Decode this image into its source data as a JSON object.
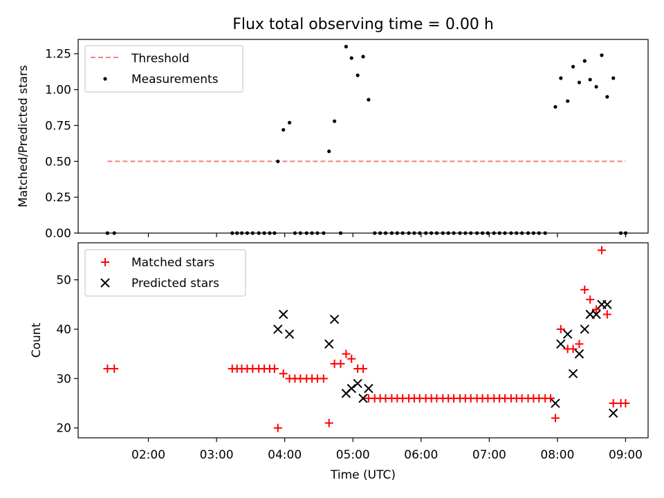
{
  "chart_data": {
    "title": "Flux total observing time = 0.00 h",
    "xlabel": "Time (UTC)",
    "x_ticks": [
      "02:00",
      "03:00",
      "04:00",
      "05:00",
      "06:00",
      "07:00",
      "08:00",
      "09:00"
    ],
    "x_range_hours": [
      0.97,
      9.33
    ],
    "panels": [
      {
        "type": "scatter",
        "ylabel": "Matched/Predicted stars",
        "ylim": [
          0,
          1.35
        ],
        "y_ticks": [
          "0.00",
          "0.25",
          "0.50",
          "0.75",
          "1.00",
          "1.25"
        ],
        "y_tick_values": [
          0,
          0.25,
          0.5,
          0.75,
          1.0,
          1.25
        ],
        "legend": {
          "position": "top-left",
          "entries": [
            "Threshold",
            "Measurements"
          ]
        },
        "threshold": {
          "name": "Threshold",
          "value": 0.5,
          "x_start": 1.4,
          "x_end": 9.0,
          "color": "#f08080"
        },
        "series": [
          {
            "name": "Measurements",
            "color": "#000000",
            "points": [
              [
                1.4,
                0
              ],
              [
                1.5,
                0
              ],
              [
                3.23,
                0
              ],
              [
                3.3,
                0
              ],
              [
                3.37,
                0
              ],
              [
                3.45,
                0
              ],
              [
                3.53,
                0
              ],
              [
                3.62,
                0
              ],
              [
                3.7,
                0
              ],
              [
                3.78,
                0
              ],
              [
                3.85,
                0
              ],
              [
                3.9,
                0.5
              ],
              [
                3.98,
                0.72
              ],
              [
                4.07,
                0.77
              ],
              [
                4.15,
                0
              ],
              [
                4.23,
                0
              ],
              [
                4.32,
                0
              ],
              [
                4.4,
                0
              ],
              [
                4.48,
                0
              ],
              [
                4.57,
                0
              ],
              [
                4.65,
                0.57
              ],
              [
                4.73,
                0.78
              ],
              [
                4.82,
                0
              ],
              [
                4.9,
                1.3
              ],
              [
                4.98,
                1.22
              ],
              [
                5.07,
                1.1
              ],
              [
                5.15,
                1.23
              ],
              [
                5.23,
                0.93
              ],
              [
                5.32,
                0
              ],
              [
                5.4,
                0
              ],
              [
                5.48,
                0
              ],
              [
                5.57,
                0
              ],
              [
                5.65,
                0
              ],
              [
                5.73,
                0
              ],
              [
                5.82,
                0
              ],
              [
                5.9,
                0
              ],
              [
                5.98,
                0
              ],
              [
                6.07,
                0
              ],
              [
                6.15,
                0
              ],
              [
                6.23,
                0
              ],
              [
                6.32,
                0
              ],
              [
                6.4,
                0
              ],
              [
                6.48,
                0
              ],
              [
                6.57,
                0
              ],
              [
                6.65,
                0
              ],
              [
                6.73,
                0
              ],
              [
                6.82,
                0
              ],
              [
                6.9,
                0
              ],
              [
                6.98,
                0
              ],
              [
                7.07,
                0
              ],
              [
                7.15,
                0
              ],
              [
                7.23,
                0
              ],
              [
                7.32,
                0
              ],
              [
                7.4,
                0
              ],
              [
                7.48,
                0
              ],
              [
                7.57,
                0
              ],
              [
                7.65,
                0
              ],
              [
                7.73,
                0
              ],
              [
                7.82,
                0
              ],
              [
                7.97,
                0.88
              ],
              [
                8.05,
                1.08
              ],
              [
                8.15,
                0.92
              ],
              [
                8.23,
                1.16
              ],
              [
                8.32,
                1.05
              ],
              [
                8.4,
                1.2
              ],
              [
                8.48,
                1.07
              ],
              [
                8.57,
                1.02
              ],
              [
                8.65,
                1.24
              ],
              [
                8.73,
                0.95
              ],
              [
                8.82,
                1.08
              ],
              [
                8.93,
                0
              ],
              [
                9.0,
                0
              ]
            ]
          }
        ]
      },
      {
        "type": "scatter",
        "ylabel": "Count",
        "ylim": [
          18,
          57.5
        ],
        "y_ticks": [
          "20",
          "30",
          "40",
          "50"
        ],
        "y_tick_values": [
          20,
          30,
          40,
          50
        ],
        "legend": {
          "position": "top-left",
          "entries": [
            "Matched stars",
            "Predicted stars"
          ]
        },
        "series": [
          {
            "name": "Matched stars",
            "marker": "plus",
            "color": "#ff0000",
            "points": [
              [
                1.4,
                32
              ],
              [
                1.5,
                32
              ],
              [
                3.23,
                32
              ],
              [
                3.3,
                32
              ],
              [
                3.37,
                32
              ],
              [
                3.45,
                32
              ],
              [
                3.53,
                32
              ],
              [
                3.62,
                32
              ],
              [
                3.7,
                32
              ],
              [
                3.78,
                32
              ],
              [
                3.85,
                32
              ],
              [
                3.9,
                20
              ],
              [
                3.98,
                31
              ],
              [
                4.07,
                30
              ],
              [
                4.15,
                30
              ],
              [
                4.23,
                30
              ],
              [
                4.32,
                30
              ],
              [
                4.4,
                30
              ],
              [
                4.48,
                30
              ],
              [
                4.57,
                30
              ],
              [
                4.65,
                21
              ],
              [
                4.73,
                33
              ],
              [
                4.82,
                33
              ],
              [
                4.9,
                35
              ],
              [
                4.98,
                34
              ],
              [
                5.07,
                32
              ],
              [
                5.15,
                32
              ],
              [
                5.23,
                26
              ],
              [
                5.32,
                26
              ],
              [
                5.4,
                26
              ],
              [
                5.48,
                26
              ],
              [
                5.57,
                26
              ],
              [
                5.65,
                26
              ],
              [
                5.73,
                26
              ],
              [
                5.82,
                26
              ],
              [
                5.9,
                26
              ],
              [
                5.98,
                26
              ],
              [
                6.07,
                26
              ],
              [
                6.15,
                26
              ],
              [
                6.23,
                26
              ],
              [
                6.32,
                26
              ],
              [
                6.4,
                26
              ],
              [
                6.48,
                26
              ],
              [
                6.57,
                26
              ],
              [
                6.65,
                26
              ],
              [
                6.73,
                26
              ],
              [
                6.82,
                26
              ],
              [
                6.9,
                26
              ],
              [
                6.98,
                26
              ],
              [
                7.07,
                26
              ],
              [
                7.15,
                26
              ],
              [
                7.23,
                26
              ],
              [
                7.32,
                26
              ],
              [
                7.4,
                26
              ],
              [
                7.48,
                26
              ],
              [
                7.57,
                26
              ],
              [
                7.65,
                26
              ],
              [
                7.73,
                26
              ],
              [
                7.82,
                26
              ],
              [
                7.9,
                26
              ],
              [
                7.97,
                22
              ],
              [
                8.05,
                40
              ],
              [
                8.15,
                36
              ],
              [
                8.23,
                36
              ],
              [
                8.32,
                37
              ],
              [
                8.4,
                48
              ],
              [
                8.48,
                46
              ],
              [
                8.57,
                44
              ],
              [
                8.65,
                56
              ],
              [
                8.73,
                43
              ],
              [
                8.82,
                25
              ],
              [
                8.93,
                25
              ],
              [
                9.0,
                25
              ]
            ]
          },
          {
            "name": "Predicted stars",
            "marker": "x",
            "color": "#000000",
            "points": [
              [
                3.9,
                40
              ],
              [
                3.98,
                43
              ],
              [
                4.07,
                39
              ],
              [
                4.65,
                37
              ],
              [
                4.73,
                42
              ],
              [
                4.9,
                27
              ],
              [
                4.98,
                28
              ],
              [
                5.07,
                29
              ],
              [
                5.15,
                26
              ],
              [
                5.23,
                28
              ],
              [
                7.97,
                25
              ],
              [
                8.05,
                37
              ],
              [
                8.15,
                39
              ],
              [
                8.23,
                31
              ],
              [
                8.32,
                35
              ],
              [
                8.4,
                40
              ],
              [
                8.48,
                43
              ],
              [
                8.57,
                43
              ],
              [
                8.65,
                45
              ],
              [
                8.73,
                45
              ],
              [
                8.82,
                23
              ]
            ]
          }
        ]
      }
    ]
  }
}
